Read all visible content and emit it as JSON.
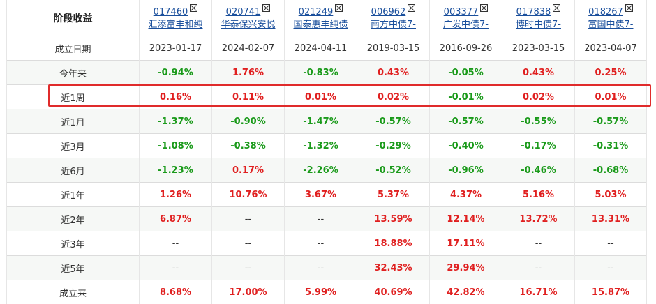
{
  "table": {
    "corner_label": "阶段收益",
    "funds": [
      {
        "code": "017460",
        "name": "汇添富丰和纯"
      },
      {
        "code": "020741",
        "name": "华泰保兴安悦"
      },
      {
        "code": "021249",
        "name": "国泰惠丰纯债"
      },
      {
        "code": "006962",
        "name": "南方中债7-"
      },
      {
        "code": "003377",
        "name": "广发中债7-"
      },
      {
        "code": "017838",
        "name": "博时中债7-"
      },
      {
        "code": "018267",
        "name": "富国中债7-"
      }
    ],
    "date_row": {
      "label": "成立日期",
      "values": [
        "2023-01-17",
        "2024-02-07",
        "2024-04-11",
        "2019-03-15",
        "2016-09-26",
        "2023-03-15",
        "2023-04-07"
      ]
    },
    "rows": [
      {
        "label": "今年来",
        "values": [
          "-0.94%",
          "1.76%",
          "-0.83%",
          "0.43%",
          "-0.05%",
          "0.43%",
          "0.25%"
        ]
      },
      {
        "label": "近1周",
        "values": [
          "0.16%",
          "0.11%",
          "0.01%",
          "0.02%",
          "-0.01%",
          "0.02%",
          "0.01%"
        ]
      },
      {
        "label": "近1月",
        "values": [
          "-1.37%",
          "-0.90%",
          "-1.47%",
          "-0.57%",
          "-0.57%",
          "-0.55%",
          "-0.57%"
        ]
      },
      {
        "label": "近3月",
        "values": [
          "-1.08%",
          "-0.38%",
          "-1.32%",
          "-0.29%",
          "-0.40%",
          "-0.17%",
          "-0.31%"
        ]
      },
      {
        "label": "近6月",
        "values": [
          "-1.23%",
          "0.17%",
          "-2.26%",
          "-0.52%",
          "-0.96%",
          "-0.46%",
          "-0.68%"
        ]
      },
      {
        "label": "近1年",
        "values": [
          "1.26%",
          "10.76%",
          "3.67%",
          "5.37%",
          "4.37%",
          "5.16%",
          "5.03%"
        ]
      },
      {
        "label": "近2年",
        "values": [
          "6.87%",
          "--",
          "--",
          "13.59%",
          "12.14%",
          "13.72%",
          "13.31%"
        ]
      },
      {
        "label": "近3年",
        "values": [
          "--",
          "--",
          "--",
          "18.88%",
          "17.11%",
          "--",
          "--"
        ]
      },
      {
        "label": "近5年",
        "values": [
          "--",
          "--",
          "--",
          "32.43%",
          "29.94%",
          "--",
          "--"
        ]
      },
      {
        "label": "成立来",
        "values": [
          "8.68%",
          "17.00%",
          "5.99%",
          "40.69%",
          "42.82%",
          "16.71%",
          "15.87%"
        ]
      }
    ]
  },
  "colors": {
    "positive": "#e02020",
    "negative": "#1a9a1a",
    "highlight": "#e02b2b",
    "link": "#1a4f9c"
  },
  "highlighted_row": "近1周"
}
